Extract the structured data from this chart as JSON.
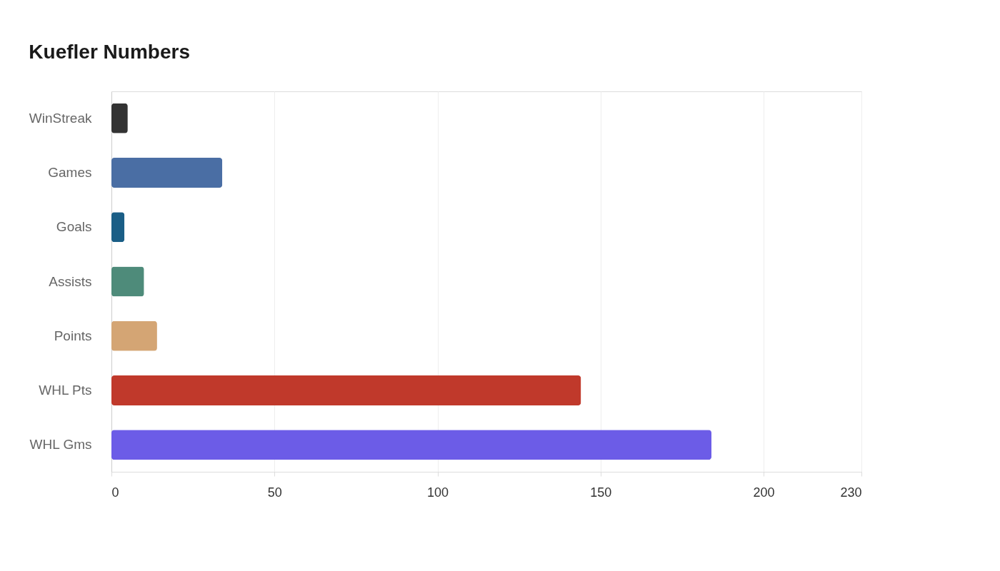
{
  "chart_data": {
    "type": "bar",
    "orientation": "horizontal",
    "title": "Kuefler Numbers",
    "categories": [
      "WinStreak",
      "Games",
      "Goals",
      "Assists",
      "Points",
      "WHL Pts",
      "WHL Gms"
    ],
    "values": [
      5,
      34,
      4,
      10,
      14,
      144,
      184
    ],
    "colors": [
      "#333333",
      "#4a6ea4",
      "#1a5e86",
      "#4e8b7a",
      "#d4a574",
      "#c0392b",
      "#6c5ce7"
    ],
    "xlim": [
      0,
      230
    ],
    "xticks": [
      0,
      50,
      100,
      150,
      200,
      230
    ],
    "grid": "x"
  }
}
